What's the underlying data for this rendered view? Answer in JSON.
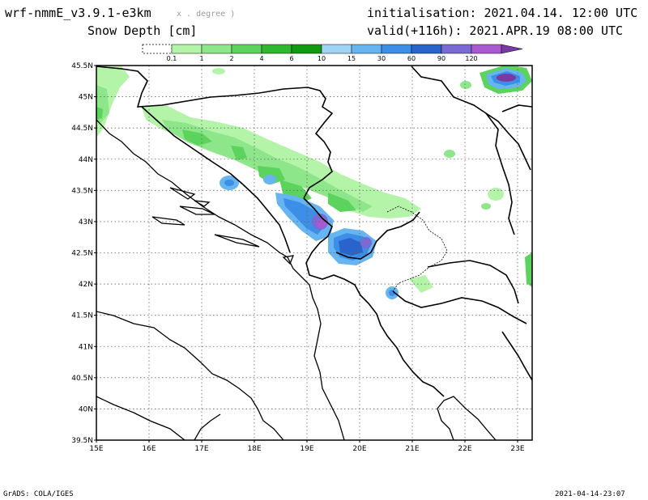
{
  "header": {
    "model": "wrf-nmmE_v3.9.1-e3km",
    "model_suffix": "x . degree )",
    "field": "Snow Depth [cm]",
    "init_label": "initialisation: 2021.04.14.  12:00 UTC",
    "valid_label": "valid(+116h): 2021.APR.19  08:00 UTC"
  },
  "legend": {
    "labels": [
      "0.1",
      "1",
      "2",
      "4",
      "6",
      "10",
      "15",
      "30",
      "60",
      "90",
      "120"
    ],
    "colors": [
      "#b4f4a8",
      "#8ee68a",
      "#5cd35c",
      "#2eb82e",
      "#109a10",
      "#a0d4f6",
      "#66b4f0",
      "#3c8ee6",
      "#2864cc",
      "#7a6ad4",
      "#aa5ad0",
      "#7a3aa4"
    ]
  },
  "axes": {
    "lat_labels": [
      "45.5N",
      "45N",
      "44.5N",
      "44N",
      "43.5N",
      "43N",
      "42.5N",
      "42N",
      "41.5N",
      "41N",
      "40.5N",
      "40N",
      "39.5N"
    ],
    "lon_labels": [
      "15E",
      "16E",
      "17E",
      "18E",
      "19E",
      "20E",
      "21E",
      "22E",
      "23E"
    ]
  },
  "footer": {
    "left": "GrADS: COLA/IGES",
    "right": "2021-04-14-23:07"
  }
}
